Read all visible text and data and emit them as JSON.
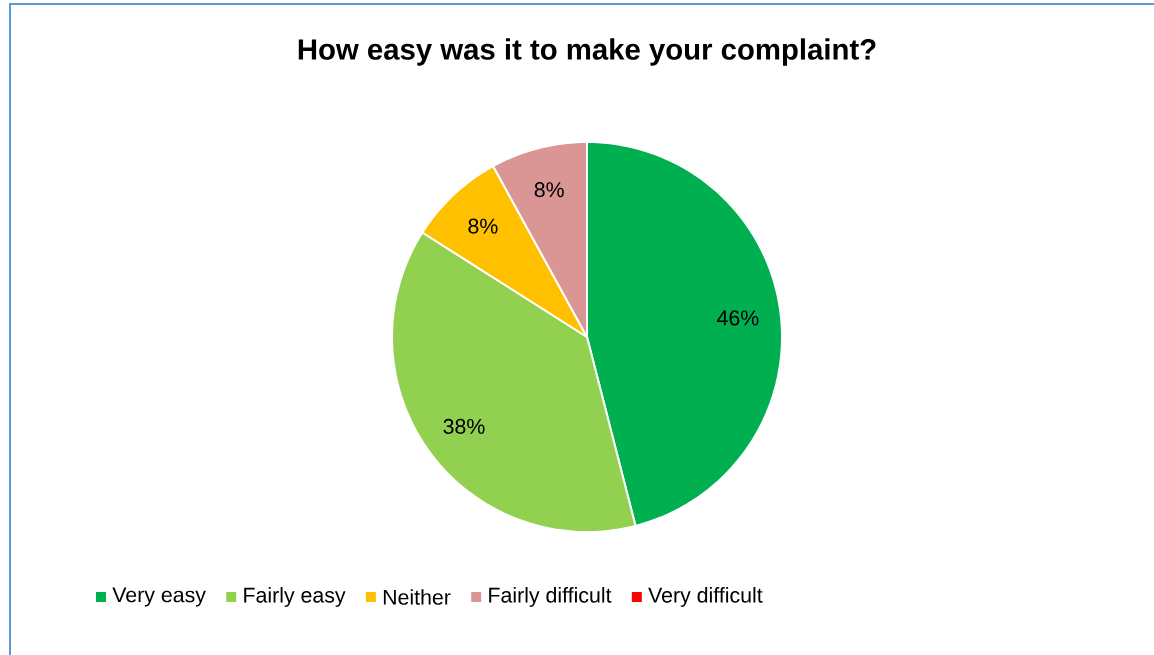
{
  "chart_data": {
    "type": "pie",
    "title": "How easy was it to make your complaint?",
    "categories": [
      "Very easy",
      "Fairly easy",
      "Neither",
      "Fairly difficult",
      "Very difficult"
    ],
    "values": [
      46,
      38,
      8,
      8,
      0
    ],
    "colors": [
      "#00b050",
      "#92d050",
      "#ffc000",
      "#d99694",
      "#ff0000"
    ],
    "value_labels": [
      "46%",
      "38%",
      "8%",
      "8%",
      null
    ],
    "legend": "bottom"
  }
}
